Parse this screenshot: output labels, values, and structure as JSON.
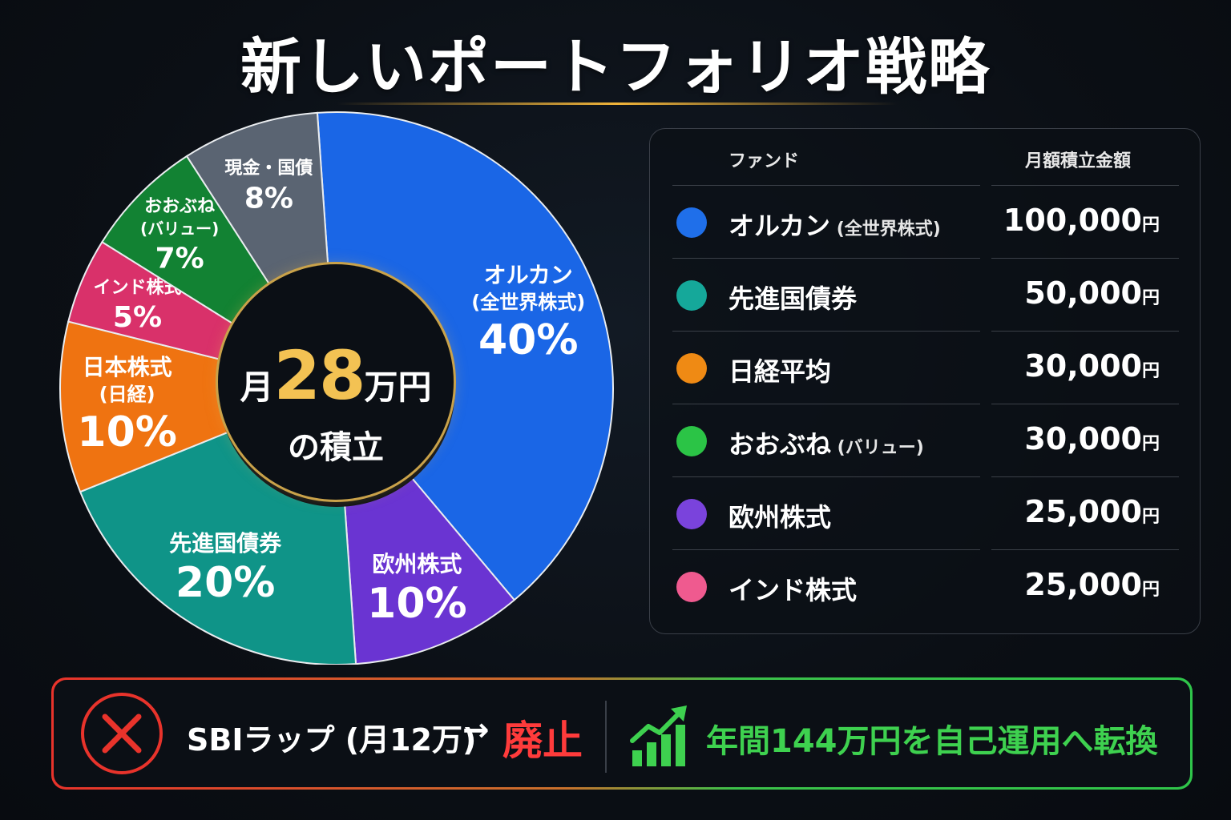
{
  "title": "新しいポートフォリオ戦略",
  "center": {
    "prefix": "月",
    "amount": "28",
    "suffix": "万円",
    "line2": "の積立"
  },
  "chart_data": {
    "type": "pie",
    "slices": [
      {
        "label": "オルカン",
        "sublabel": "(全世界株式)",
        "value": 40,
        "value_text": "40%",
        "color": "#1a66e6"
      },
      {
        "label": "欧州株式",
        "sublabel": "",
        "value": 10,
        "value_text": "10%",
        "color": "#6a34d2"
      },
      {
        "label": "先進国債券",
        "sublabel": "",
        "value": 20,
        "value_text": "20%",
        "color": "#0f9488"
      },
      {
        "label": "日本株式",
        "sublabel": "(日経)",
        "value": 10,
        "value_text": "10%",
        "color": "#ef7311"
      },
      {
        "label": "インド株式",
        "sublabel": "",
        "value": 5,
        "value_text": "5%",
        "color": "#d9316a"
      },
      {
        "label": "おおぶね",
        "sublabel": "(バリュー)",
        "value": 7,
        "value_text": "7%",
        "color": "#128233"
      },
      {
        "label": "現金・国債",
        "sublabel": "",
        "value": 8,
        "value_text": "8%",
        "color": "#5a6472"
      }
    ]
  },
  "table": {
    "header_fund": "ファンド",
    "header_amount": "月額積立金額",
    "yen": "円",
    "rows": [
      {
        "name": "オルカン",
        "sub": "(全世界株式)",
        "amount": "100,000",
        "color": "#1f6fea"
      },
      {
        "name": "先進国債券",
        "sub": "",
        "amount": "50,000",
        "color": "#15a89a"
      },
      {
        "name": "日経平均",
        "sub": "",
        "amount": "30,000",
        "color": "#ef8a14"
      },
      {
        "name": "おおぶね",
        "sub": "(バリュー)",
        "amount": "30,000",
        "color": "#2bc446"
      },
      {
        "name": "欧州株式",
        "sub": "",
        "amount": "25,000",
        "color": "#7a43dc"
      },
      {
        "name": "インド株式",
        "sub": "",
        "amount": "25,000",
        "color": "#ef5a8f"
      }
    ]
  },
  "banner": {
    "left_text": "SBIラップ (月12万)",
    "arrow": "→",
    "abolish": "廃止",
    "right_text": "年間144万円を自己運用へ転換",
    "left_color": "#e8332b",
    "right_color": "#3ed14f"
  }
}
